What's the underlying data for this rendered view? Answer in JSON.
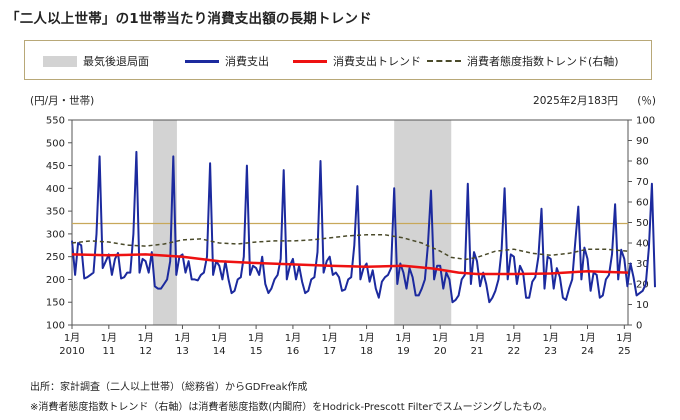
{
  "title": "「二人以上世帯」の1世帯当たり消費支出額の長期トレンド",
  "legend": {
    "recession": "最気後退局面",
    "spending": "消費支出",
    "trend": "消費支出トレンド",
    "confidence": "消費者態度指数トレンド(右軸)"
  },
  "unit_left": "(円/月・世帯)",
  "unit_right": "(％)",
  "date_note": "2025年2月183円",
  "source": "出所：家計調査（二人以上世帯）（総務省）からGDFreak作成",
  "footnote": "※消費者態度指数トレンド（右軸）は消費者態度指数(内閣府）をHodrick-Prescott Filterでスムージングしたもの。",
  "colors": {
    "spending": "#1c2a9e",
    "trend": "#ee1111",
    "confidence": "#4a4a2a",
    "recession": "#d3d3d3",
    "refline": "#c8a85a"
  },
  "chart_data": {
    "type": "line",
    "y_left": {
      "min": 100,
      "max": 550,
      "ticks": [
        100,
        150,
        200,
        250,
        300,
        350,
        400,
        450,
        500,
        550
      ]
    },
    "y_right": {
      "min": 0,
      "max": 100,
      "ticks": [
        0,
        10,
        20,
        30,
        40,
        50,
        60,
        70,
        80,
        90,
        100
      ]
    },
    "x_ticks": [
      {
        "m": "1月",
        "y": "2010"
      },
      {
        "m": "1月",
        "y": "11"
      },
      {
        "m": "1月",
        "y": "12"
      },
      {
        "m": "1月",
        "y": "13"
      },
      {
        "m": "1月",
        "y": "14"
      },
      {
        "m": "1月",
        "y": "15"
      },
      {
        "m": "1月",
        "y": "16"
      },
      {
        "m": "1月",
        "y": "17"
      },
      {
        "m": "1月",
        "y": "18"
      },
      {
        "m": "1月",
        "y": "19"
      },
      {
        "m": "1月",
        "y": "20"
      },
      {
        "m": "1月",
        "y": "21"
      },
      {
        "m": "1月",
        "y": "22"
      },
      {
        "m": "1月",
        "y": "23"
      },
      {
        "m": "1月",
        "y": "24"
      },
      {
        "m": "1月",
        "y": "25"
      }
    ],
    "x_range": [
      2010.0,
      2025.1
    ],
    "recessions": [
      [
        2012.2,
        2012.85
      ],
      [
        2018.75,
        2020.3
      ]
    ],
    "reference_line_right_axis": 49.5,
    "series": [
      {
        "name": "消費支出",
        "x_start": 2010.0,
        "step": 0.0833333,
        "values": [
          285,
          210,
          280,
          275,
          202,
          205,
          210,
          215,
          300,
          470,
          225,
          240,
          255,
          210,
          245,
          258,
          202,
          205,
          215,
          215,
          300,
          480,
          215,
          245,
          240,
          215,
          260,
          185,
          180,
          180,
          190,
          200,
          240,
          470,
          210,
          250,
          255,
          215,
          240,
          200,
          200,
          198,
          210,
          215,
          250,
          455,
          210,
          240,
          230,
          200,
          240,
          200,
          170,
          175,
          200,
          205,
          250,
          450,
          210,
          230,
          225,
          210,
          250,
          190,
          170,
          180,
          200,
          210,
          245,
          440,
          200,
          230,
          245,
          200,
          230,
          195,
          170,
          175,
          200,
          205,
          260,
          460,
          215,
          240,
          250,
          210,
          215,
          205,
          175,
          178,
          200,
          205,
          275,
          405,
          200,
          225,
          235,
          195,
          220,
          180,
          160,
          195,
          205,
          210,
          225,
          400,
          190,
          235,
          215,
          180,
          225,
          205,
          165,
          165,
          180,
          200,
          275,
          395,
          200,
          230,
          230,
          180,
          215,
          200,
          150,
          155,
          165,
          200,
          210,
          410,
          190,
          260,
          240,
          185,
          215,
          190,
          150,
          160,
          175,
          200,
          265,
          400,
          200,
          255,
          250,
          190,
          230,
          215,
          160,
          160,
          195,
          205,
          250,
          355,
          180,
          250,
          245,
          180,
          225,
          205,
          160,
          155,
          180,
          200,
          280,
          360,
          200,
          270,
          245,
          175,
          215,
          210,
          160,
          165,
          200,
          210,
          255,
          365,
          200,
          265,
          245,
          185,
          235,
          205,
          165,
          170,
          175,
          190,
          270,
          410,
          183
        ]
      },
      {
        "name": "消費支出トレンド",
        "points": [
          [
            2010.0,
            255
          ],
          [
            2011.0,
            253
          ],
          [
            2012.0,
            255
          ],
          [
            2013.0,
            250
          ],
          [
            2014.0,
            240
          ],
          [
            2015.0,
            236
          ],
          [
            2016.0,
            233
          ],
          [
            2017.0,
            230
          ],
          [
            2018.0,
            228
          ],
          [
            2019.0,
            230
          ],
          [
            2019.8,
            224
          ],
          [
            2020.5,
            215
          ],
          [
            2021.0,
            212
          ],
          [
            2022.0,
            212
          ],
          [
            2023.0,
            213
          ],
          [
            2024.0,
            218
          ],
          [
            2025.1,
            215
          ]
        ]
      },
      {
        "name": "消費者態度指数トレンド(右軸)",
        "axis": "right",
        "points": [
          [
            2010.0,
            40
          ],
          [
            2010.5,
            41
          ],
          [
            2011.0,
            40.5
          ],
          [
            2011.5,
            39
          ],
          [
            2012.0,
            38.5
          ],
          [
            2012.5,
            39.5
          ],
          [
            2013.0,
            41.5
          ],
          [
            2013.5,
            42
          ],
          [
            2014.0,
            40
          ],
          [
            2014.5,
            39.5
          ],
          [
            2015.0,
            40.5
          ],
          [
            2015.5,
            41
          ],
          [
            2016.0,
            41
          ],
          [
            2016.5,
            41.5
          ],
          [
            2017.0,
            42.5
          ],
          [
            2017.5,
            43.5
          ],
          [
            2018.0,
            44
          ],
          [
            2018.5,
            44
          ],
          [
            2019.0,
            42.5
          ],
          [
            2019.5,
            40
          ],
          [
            2020.0,
            36
          ],
          [
            2020.3,
            33
          ],
          [
            2020.7,
            32
          ],
          [
            2021.0,
            33
          ],
          [
            2021.5,
            36
          ],
          [
            2022.0,
            37
          ],
          [
            2022.5,
            35
          ],
          [
            2023.0,
            34
          ],
          [
            2023.5,
            35
          ],
          [
            2024.0,
            37
          ],
          [
            2024.5,
            37
          ],
          [
            2025.1,
            36
          ]
        ]
      }
    ]
  }
}
